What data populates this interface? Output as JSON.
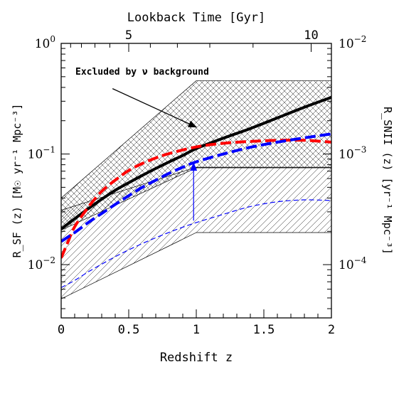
{
  "chart_data": {
    "type": "line",
    "xlabel": "Redshift z",
    "x2label": "Lookback Time [Gyr]",
    "ylabel": "R_SF (z) [M☉ yr⁻¹ Mpc⁻³]",
    "y2label": "R_SNII (z) [yr⁻¹ Mpc⁻³]",
    "xlim": [
      0,
      2
    ],
    "ylim": [
      0.0033,
      1.0
    ],
    "yscale": "log",
    "y2lim": [
      3.3e-05,
      0.01
    ],
    "y2scale": "log",
    "grid": false,
    "x_ticks": [
      {
        "value": 0,
        "label": "0"
      },
      {
        "value": 0.5,
        "label": "0.5"
      },
      {
        "value": 1,
        "label": "1"
      },
      {
        "value": 1.5,
        "label": "1.5"
      },
      {
        "value": 2,
        "label": "2"
      }
    ],
    "x2_ticks": [
      {
        "gyr": 5,
        "z": 0.5,
        "label": "5"
      },
      {
        "gyr": 10,
        "z": 1.85,
        "label": "10"
      }
    ],
    "y_ticks": [
      {
        "value": 1.0,
        "base": "10",
        "exp": "0"
      },
      {
        "value": 0.1,
        "base": "10",
        "exp": "−1"
      },
      {
        "value": 0.01,
        "base": "10",
        "exp": "−2"
      }
    ],
    "y2_ticks": [
      {
        "value": 0.01,
        "base": "10",
        "exp": "−2"
      },
      {
        "value": 0.001,
        "base": "10",
        "exp": "−3"
      },
      {
        "value": 0.0001,
        "base": "10",
        "exp": "−4"
      }
    ],
    "annotations": [
      {
        "text": "Excluded by ν background",
        "arrow_from": [
          0.38,
          0.39
        ],
        "arrow_to": [
          1.0,
          0.175
        ]
      },
      {
        "text": "",
        "arrow_from": [
          0.98,
          0.025
        ],
        "arrow_to": [
          0.98,
          0.083
        ],
        "color": "#0000ff"
      }
    ],
    "regions": [
      {
        "name": "",
        "hatch": "cross",
        "upper": {
          "x": [
            0,
            1,
            2
          ],
          "y": [
            0.04,
            0.46,
            0.46
          ]
        },
        "lower": {
          "x": [
            0,
            1,
            2
          ],
          "y": [
            0.0205,
            0.075,
            0.075
          ]
        }
      },
      {
        "name": "",
        "hatch": "diagonal",
        "upper": {
          "x": [
            0,
            1,
            2
          ],
          "y": [
            0.031,
            0.076,
            0.076
          ]
        },
        "lower": {
          "x": [
            0,
            1,
            2
          ],
          "y": [
            0.0049,
            0.0195,
            0.0195
          ]
        }
      }
    ],
    "series": [
      {
        "color": "#000000",
        "style": "solid",
        "width": 4,
        "x": [
          0,
          0.1,
          0.2,
          0.3,
          0.4,
          0.5,
          0.6,
          0.7,
          0.8,
          0.9,
          1.0,
          1.2,
          1.4,
          1.6,
          1.8,
          2.0
        ],
        "y": [
          0.021,
          0.026,
          0.032,
          0.039,
          0.047,
          0.055,
          0.064,
          0.074,
          0.085,
          0.097,
          0.112,
          0.139,
          0.17,
          0.212,
          0.265,
          0.325
        ]
      },
      {
        "color": "#ff0000",
        "style": "dashed",
        "width": 4,
        "x": [
          0,
          0.05,
          0.1,
          0.2,
          0.3,
          0.4,
          0.5,
          0.6,
          0.7,
          0.8,
          1.0,
          1.2,
          1.4,
          1.6,
          1.8,
          2.0
        ],
        "y": [
          0.0115,
          0.016,
          0.022,
          0.033,
          0.046,
          0.058,
          0.071,
          0.082,
          0.092,
          0.101,
          0.116,
          0.125,
          0.13,
          0.133,
          0.133,
          0.128
        ]
      },
      {
        "color": "#0000ff",
        "style": "dashed",
        "width": 4,
        "x": [
          0,
          0.1,
          0.2,
          0.3,
          0.4,
          0.5,
          0.6,
          0.7,
          0.8,
          0.9,
          1.0,
          1.2,
          1.4,
          1.6,
          1.8,
          2.0
        ],
        "y": [
          0.0162,
          0.0195,
          0.024,
          0.029,
          0.035,
          0.042,
          0.05,
          0.058,
          0.067,
          0.076,
          0.085,
          0.1,
          0.115,
          0.128,
          0.14,
          0.152
        ]
      },
      {
        "color": "#0000ff",
        "style": "dashed",
        "width": 1.2,
        "x": [
          0,
          0.1,
          0.2,
          0.3,
          0.4,
          0.5,
          0.6,
          0.7,
          0.8,
          0.9,
          1.0,
          1.2,
          1.4,
          1.6,
          1.8,
          2.0
        ],
        "y": [
          0.0062,
          0.0072,
          0.0086,
          0.0101,
          0.0118,
          0.0136,
          0.0155,
          0.0175,
          0.0196,
          0.0218,
          0.024,
          0.0285,
          0.0335,
          0.037,
          0.0385,
          0.038
        ]
      }
    ]
  }
}
